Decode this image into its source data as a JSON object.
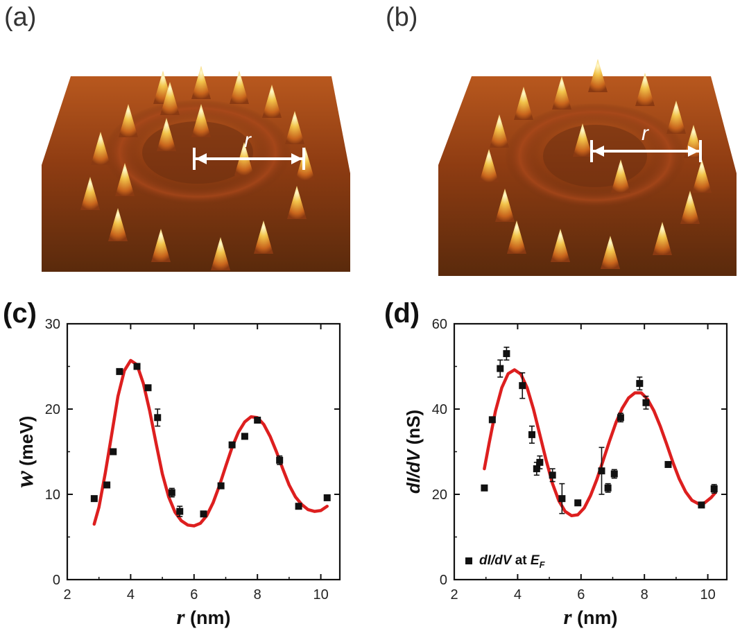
{
  "panels": {
    "a": "(a)",
    "b": "(b)",
    "c": "(c)",
    "d": "(d)"
  },
  "stm_images": {
    "a": {
      "arrow_label": "r",
      "description_color": "#8a3a12"
    },
    "b": {
      "arrow_label": "r",
      "description_color": "#8a3a12"
    }
  },
  "colors": {
    "fit": "#dd1f1f",
    "marker": "#111111",
    "axis": "#111111"
  },
  "chart_data": [
    {
      "id": "c",
      "type": "scatter",
      "xlabel_var": "r",
      "xlabel_unit": " (nm)",
      "ylabel_var": "w",
      "ylabel_unit": " (meV)",
      "xlim": [
        2,
        10.6
      ],
      "ylim": [
        0,
        30
      ],
      "xticks": [
        2,
        4,
        6,
        8,
        10
      ],
      "yticks": [
        0,
        10,
        20,
        30
      ],
      "points": [
        {
          "x": 2.85,
          "y": 9.5,
          "err": 0
        },
        {
          "x": 3.25,
          "y": 11.1,
          "err": 0
        },
        {
          "x": 3.45,
          "y": 15.0,
          "err": 0
        },
        {
          "x": 3.65,
          "y": 24.4,
          "err": 0
        },
        {
          "x": 4.2,
          "y": 25.0,
          "err": 0
        },
        {
          "x": 4.55,
          "y": 22.5,
          "err": 0
        },
        {
          "x": 4.85,
          "y": 19.0,
          "err": 1.0
        },
        {
          "x": 5.3,
          "y": 10.2,
          "err": 0.5
        },
        {
          "x": 5.55,
          "y": 8.0,
          "err": 0.6
        },
        {
          "x": 6.3,
          "y": 7.7,
          "err": 0
        },
        {
          "x": 6.85,
          "y": 11.0,
          "err": 0
        },
        {
          "x": 7.2,
          "y": 15.8,
          "err": 0
        },
        {
          "x": 7.6,
          "y": 16.8,
          "err": 0
        },
        {
          "x": 8.0,
          "y": 18.7,
          "err": 0
        },
        {
          "x": 8.7,
          "y": 14.0,
          "err": 0.5
        },
        {
          "x": 9.3,
          "y": 8.6,
          "err": 0
        },
        {
          "x": 10.2,
          "y": 9.6,
          "err": 0
        }
      ],
      "fit": [
        [
          2.85,
          6.5
        ],
        [
          3.0,
          8.5
        ],
        [
          3.2,
          12.5
        ],
        [
          3.4,
          17.0
        ],
        [
          3.6,
          21.5
        ],
        [
          3.8,
          24.5
        ],
        [
          4.0,
          25.7
        ],
        [
          4.2,
          25.2
        ],
        [
          4.4,
          23.0
        ],
        [
          4.6,
          19.8
        ],
        [
          4.8,
          16.0
        ],
        [
          5.0,
          12.4
        ],
        [
          5.2,
          9.7
        ],
        [
          5.4,
          7.9
        ],
        [
          5.6,
          6.9
        ],
        [
          5.8,
          6.4
        ],
        [
          6.0,
          6.3
        ],
        [
          6.2,
          6.6
        ],
        [
          6.4,
          7.5
        ],
        [
          6.6,
          9.0
        ],
        [
          6.8,
          11.0
        ],
        [
          7.0,
          13.3
        ],
        [
          7.2,
          15.5
        ],
        [
          7.4,
          17.3
        ],
        [
          7.6,
          18.5
        ],
        [
          7.8,
          19.1
        ],
        [
          8.0,
          19.0
        ],
        [
          8.2,
          18.2
        ],
        [
          8.4,
          16.8
        ],
        [
          8.6,
          15.0
        ],
        [
          8.8,
          13.0
        ],
        [
          9.0,
          11.1
        ],
        [
          9.2,
          9.7
        ],
        [
          9.4,
          8.8
        ],
        [
          9.6,
          8.2
        ],
        [
          9.8,
          8.0
        ],
        [
          10.0,
          8.1
        ],
        [
          10.2,
          8.6
        ]
      ]
    },
    {
      "id": "d",
      "type": "scatter",
      "xlabel_var": "r",
      "xlabel_unit": " (nm)",
      "ylabel_var": "dI/dV",
      "ylabel_unit": " (nS)",
      "xlim": [
        2,
        10.6
      ],
      "ylim": [
        0,
        60
      ],
      "xticks": [
        2,
        4,
        6,
        8,
        10
      ],
      "yticks": [
        0,
        20,
        40,
        60
      ],
      "legend": {
        "label": "dI/dV",
        "suffix": " at ",
        "var": "E",
        "sub": "F",
        "placement": "bottom-left"
      },
      "points": [
        {
          "x": 2.95,
          "y": 21.5,
          "err": 0
        },
        {
          "x": 3.2,
          "y": 37.5,
          "err": 0
        },
        {
          "x": 3.45,
          "y": 49.5,
          "err": 2.0
        },
        {
          "x": 3.65,
          "y": 53.0,
          "err": 1.5
        },
        {
          "x": 4.15,
          "y": 45.5,
          "err": 3.0
        },
        {
          "x": 4.45,
          "y": 34.0,
          "err": 2.0
        },
        {
          "x": 4.6,
          "y": 26.0,
          "err": 1.5
        },
        {
          "x": 4.7,
          "y": 27.5,
          "err": 1.5
        },
        {
          "x": 5.1,
          "y": 24.5,
          "err": 1.5
        },
        {
          "x": 5.4,
          "y": 19.0,
          "err": 3.5
        },
        {
          "x": 5.9,
          "y": 18.0,
          "err": 0
        },
        {
          "x": 6.65,
          "y": 25.5,
          "err": 5.5
        },
        {
          "x": 6.85,
          "y": 21.5,
          "err": 1.0
        },
        {
          "x": 7.05,
          "y": 24.8,
          "err": 1.0
        },
        {
          "x": 7.25,
          "y": 38.0,
          "err": 1.0
        },
        {
          "x": 7.85,
          "y": 46.0,
          "err": 1.5
        },
        {
          "x": 8.05,
          "y": 41.5,
          "err": 1.5
        },
        {
          "x": 8.75,
          "y": 27.0,
          "err": 0
        },
        {
          "x": 9.8,
          "y": 17.5,
          "err": 0
        },
        {
          "x": 10.2,
          "y": 21.3,
          "err": 1.0
        }
      ],
      "fit": [
        [
          2.95,
          26.0
        ],
        [
          3.1,
          32.0
        ],
        [
          3.3,
          39.5
        ],
        [
          3.5,
          45.0
        ],
        [
          3.7,
          48.3
        ],
        [
          3.9,
          49.2
        ],
        [
          4.1,
          48.2
        ],
        [
          4.3,
          45.0
        ],
        [
          4.5,
          40.0
        ],
        [
          4.7,
          34.0
        ],
        [
          4.9,
          28.0
        ],
        [
          5.1,
          22.5
        ],
        [
          5.3,
          18.5
        ],
        [
          5.5,
          16.0
        ],
        [
          5.7,
          15.0
        ],
        [
          5.9,
          15.2
        ],
        [
          6.1,
          16.8
        ],
        [
          6.3,
          19.7
        ],
        [
          6.5,
          23.5
        ],
        [
          6.7,
          28.0
        ],
        [
          6.9,
          32.5
        ],
        [
          7.1,
          36.8
        ],
        [
          7.3,
          40.2
        ],
        [
          7.5,
          42.6
        ],
        [
          7.7,
          43.8
        ],
        [
          7.9,
          43.8
        ],
        [
          8.1,
          42.3
        ],
        [
          8.3,
          39.6
        ],
        [
          8.5,
          36.0
        ],
        [
          8.7,
          31.8
        ],
        [
          8.9,
          27.5
        ],
        [
          9.1,
          23.6
        ],
        [
          9.3,
          20.6
        ],
        [
          9.5,
          18.6
        ],
        [
          9.7,
          17.8
        ],
        [
          9.9,
          18.0
        ],
        [
          10.1,
          19.2
        ],
        [
          10.25,
          20.5
        ]
      ]
    }
  ]
}
